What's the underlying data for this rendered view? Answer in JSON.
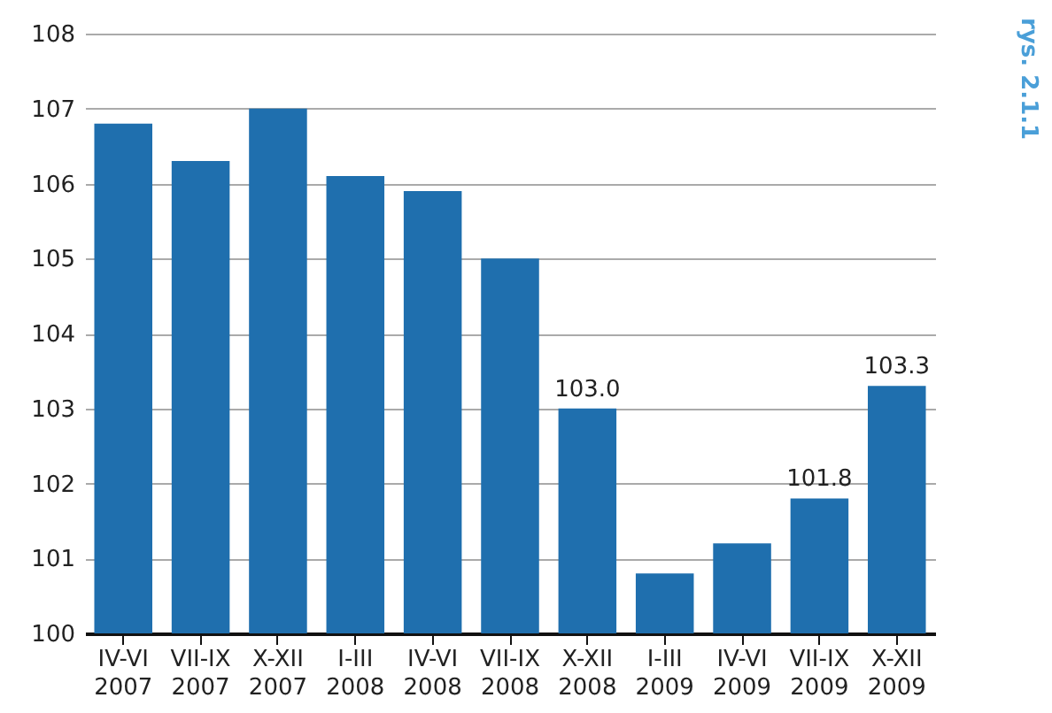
{
  "chart_data": {
    "type": "bar",
    "categories": [
      "IV-VI 2007",
      "VII-IX 2007",
      "X-XII 2007",
      "I-III 2008",
      "IV-VI 2008",
      "VII-IX 2008",
      "X-XII 2008",
      "I-III 2009",
      "IV-VI 2009",
      "VII-IX 2009",
      "X-XII 2009"
    ],
    "values": [
      106.8,
      106.3,
      107.0,
      106.1,
      105.9,
      105.0,
      103.0,
      100.8,
      101.2,
      101.8,
      103.3
    ],
    "value_labels": [
      null,
      null,
      null,
      null,
      null,
      null,
      "103.0",
      null,
      null,
      "101.8",
      "103.3"
    ],
    "color": "#1f6fae",
    "ylim": [
      100,
      108
    ],
    "yticks": [
      100,
      101,
      102,
      103,
      104,
      105,
      106,
      107,
      108
    ],
    "grid": "y",
    "annotations": [
      "rys. 2.1.1"
    ]
  }
}
